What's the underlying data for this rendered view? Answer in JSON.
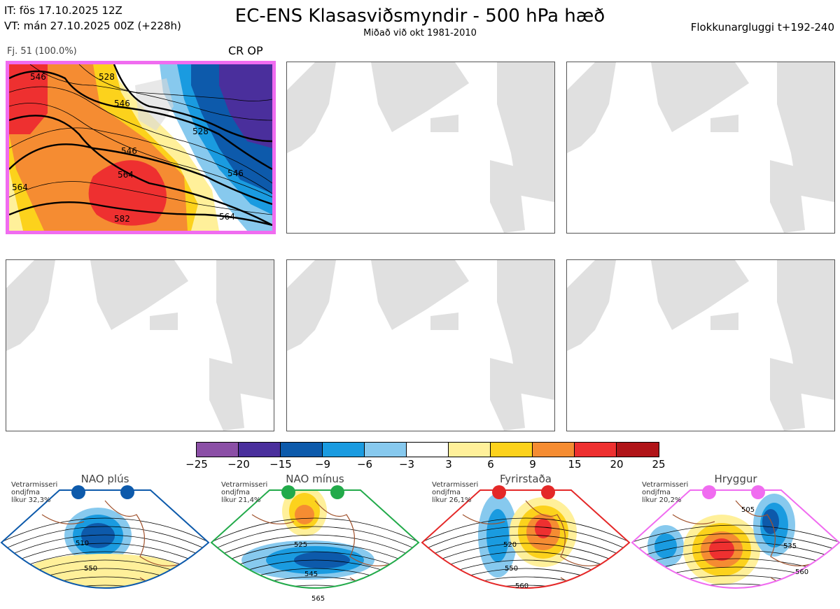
{
  "header": {
    "it_line": "IT: fös 17.10.2025 12Z",
    "vt_line": "VT: mán 27.10.2025 00Z  (+228h)",
    "title": "EC-ENS Klasasviðsmyndir - 500 hPa hæð",
    "subtitle": "Miðað við okt 1981-2010",
    "window": "Flokkunargluggi t+192-240"
  },
  "panels": {
    "active": {
      "label": "Fj. 51 (100.0%)",
      "regime": "CR OP",
      "contour_labels": [
        "546",
        "546",
        "528",
        "546",
        "564",
        "528",
        "582",
        "564",
        "546",
        "564"
      ]
    }
  },
  "colorbar": {
    "colors": [
      "#8b4fa6",
      "#4a2f9c",
      "#0d5aab",
      "#1a9be0",
      "#87c9ee",
      "#ffffff",
      "#fff09a",
      "#fcd21c",
      "#f58c32",
      "#ee3030",
      "#b01418"
    ],
    "ticks": [
      "−25",
      "−20",
      "−15",
      "−9",
      "−6",
      "−3",
      "3",
      "6",
      "9",
      "15",
      "20",
      "25"
    ]
  },
  "regimes": [
    {
      "title": "NAO plús",
      "info": [
        "Vetrarmisseri",
        "ondjfma",
        "líkur 32,3%"
      ],
      "color": "#0d5aab",
      "labels": [
        "510",
        "550"
      ]
    },
    {
      "title": "NAO mínus",
      "info": [
        "Vetrarmisseri",
        "ondjfma",
        "líkur 21,4%"
      ],
      "color": "#22aa4a",
      "labels": [
        "525",
        "545",
        "565"
      ]
    },
    {
      "title": "Fyrirstaða",
      "info": [
        "Vetrarmisseri",
        "ondjfma",
        "líkur 26,1%"
      ],
      "color": "#e42828",
      "labels": [
        "520",
        "550",
        "560"
      ]
    },
    {
      "title": "Hryggur",
      "info": [
        "Vetrarmisseri",
        "ondjfma",
        "líkur 20,2%"
      ],
      "color": "#f06cf0",
      "labels": [
        "505",
        "535",
        "560"
      ]
    }
  ]
}
